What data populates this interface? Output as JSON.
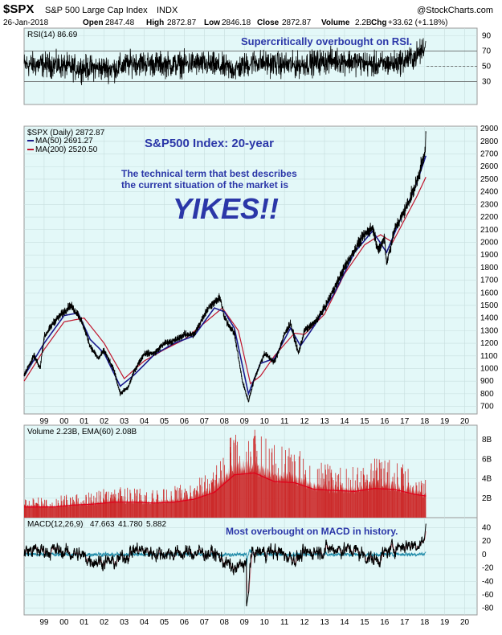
{
  "header": {
    "symbol": "$SPX",
    "name": "S&P 500 Large Cap Index",
    "exchange": "INDX",
    "watermark": "@StockCharts.com",
    "date": "26-Jan-2018",
    "open_label": "Open",
    "open": "2847.48",
    "high_label": "High",
    "high": "2872.87",
    "low_label": "Low",
    "low": "2846.18",
    "close_label": "Close",
    "close": "2872.87",
    "volume_label": "Volume",
    "volume": "2.2B",
    "chg_label": "Chg",
    "chg": "+33.62 (+1.18%)"
  },
  "colors": {
    "panel_bg": "#e3f8f8",
    "price": "#000000",
    "ma50": "#1a1a8c",
    "ma200": "#c0142c",
    "volume_fill": "#cc2a2a",
    "volume_ema": "#e0001a",
    "macd_signal": "#e0001a",
    "macd_hist": "#1e8aa8",
    "annotation": "#2b37a8"
  },
  "annotations": {
    "rsi_note": "Supercritically overbought on RSI.",
    "price_title": "S&P500 Index: 20-year",
    "price_text_1": "The technical term that best describes",
    "price_text_2": "the current situation of the market is",
    "price_yikes": "YIKES!!",
    "macd_note": "Most overbought on MACD in history."
  },
  "chart_data": [
    {
      "type": "line",
      "panel": "rsi",
      "legend": "RSI(14) 86.69",
      "current": 86.69,
      "ylim": [
        0,
        100
      ],
      "yticks": [
        "90",
        "70",
        "50",
        "30"
      ],
      "reference_lines": [
        70,
        30
      ],
      "x": [
        "99",
        "00",
        "01",
        "02",
        "03",
        "04",
        "05",
        "06",
        "07",
        "08",
        "09",
        "10",
        "11",
        "12",
        "13",
        "14",
        "15",
        "16",
        "17",
        "18"
      ],
      "mean_by_year": [
        52,
        48,
        48,
        47,
        55,
        53,
        52,
        54,
        51,
        46,
        56,
        53,
        51,
        55,
        58,
        56,
        52,
        54,
        62,
        86
      ]
    },
    {
      "type": "line",
      "panel": "price",
      "title": "S&P500 Index: 20-year",
      "ylim": [
        640,
        2920
      ],
      "yticks": [
        "2900",
        "2800",
        "2700",
        "2600",
        "2500",
        "2400",
        "2300",
        "2200",
        "2100",
        "2000",
        "1900",
        "1800",
        "1700",
        "1600",
        "1500",
        "1400",
        "1300",
        "1200",
        "1100",
        "1000",
        "900",
        "800",
        "700"
      ],
      "xticks": [
        "99",
        "00",
        "01",
        "02",
        "03",
        "04",
        "05",
        "06",
        "07",
        "08",
        "09",
        "10",
        "11",
        "12",
        "13",
        "14",
        "15",
        "16",
        "17",
        "18",
        "19",
        "20"
      ],
      "series": [
        {
          "name": "$SPX (Daily) 2872.87",
          "x": [
            1998.0,
            1998.5,
            1998.8,
            1999.0,
            1999.5,
            2000.0,
            2000.3,
            2000.7,
            2001.0,
            2001.3,
            2001.7,
            2002.0,
            2002.5,
            2002.8,
            2003.2,
            2003.5,
            2004.0,
            2004.5,
            2005.0,
            2005.5,
            2006.0,
            2006.5,
            2007.0,
            2007.3,
            2007.8,
            2008.0,
            2008.5,
            2008.9,
            2009.2,
            2009.5,
            2010.0,
            2010.5,
            2011.0,
            2011.3,
            2011.7,
            2012.0,
            2012.5,
            2013.0,
            2013.5,
            2014.0,
            2014.5,
            2015.0,
            2015.4,
            2015.7,
            2016.0,
            2016.1,
            2016.5,
            2017.0,
            2017.5,
            2018.0,
            2018.07
          ],
          "values": [
            950,
            1100,
            1000,
            1250,
            1370,
            1450,
            1500,
            1430,
            1320,
            1180,
            1080,
            1140,
            980,
            800,
            850,
            980,
            1120,
            1120,
            1200,
            1220,
            1270,
            1270,
            1430,
            1500,
            1560,
            1400,
            1280,
            900,
            740,
            920,
            1120,
            1050,
            1270,
            1360,
            1120,
            1300,
            1360,
            1480,
            1640,
            1800,
            1940,
            2060,
            2120,
            1930,
            2040,
            1830,
            2100,
            2250,
            2430,
            2690,
            2872
          ]
        },
        {
          "name": "MA(50) 2691.27",
          "x": [
            1998.0,
            1999.0,
            2000.0,
            2000.7,
            2001.3,
            2002.0,
            2002.8,
            2003.5,
            2004.5,
            2005.5,
            2006.5,
            2007.5,
            2008.0,
            2008.5,
            2009.2,
            2009.8,
            2010.5,
            2011.3,
            2011.8,
            2012.5,
            2013.5,
            2014.5,
            2015.4,
            2016.1,
            2016.7,
            2017.5,
            2018.07
          ],
          "values": [
            940,
            1200,
            1420,
            1440,
            1230,
            1120,
            860,
            950,
            1110,
            1200,
            1260,
            1480,
            1450,
            1320,
            800,
            1040,
            1080,
            1320,
            1180,
            1340,
            1600,
            1920,
            2090,
            1920,
            2150,
            2420,
            2691
          ]
        },
        {
          "name": "MA(200) 2520.50",
          "x": [
            1998.0,
            1999.0,
            2000.0,
            2001.0,
            2002.0,
            2003.0,
            2004.0,
            2005.0,
            2006.0,
            2007.0,
            2007.9,
            2008.7,
            2009.3,
            2009.8,
            2010.5,
            2011.5,
            2012.0,
            2013.0,
            2014.0,
            2015.0,
            2015.8,
            2016.4,
            2017.0,
            2017.6,
            2018.07
          ],
          "values": [
            900,
            1150,
            1370,
            1400,
            1200,
            920,
            1060,
            1150,
            1230,
            1360,
            1480,
            1300,
            880,
            940,
            1100,
            1280,
            1270,
            1430,
            1750,
            1980,
            2060,
            2000,
            2180,
            2360,
            2520
          ]
        }
      ]
    },
    {
      "type": "bar",
      "panel": "volume",
      "legend": "Volume 2.23B, EMA(60) 2.08B",
      "ylim": [
        0,
        9.5
      ],
      "yticks": [
        "8B",
        "6B",
        "4B",
        "2B"
      ],
      "x": [
        "99",
        "00",
        "01",
        "02",
        "03",
        "04",
        "05",
        "06",
        "07",
        "08",
        "09",
        "10",
        "11",
        "12",
        "13",
        "14",
        "15",
        "16",
        "17",
        "18"
      ],
      "values": [
        1.2,
        1.4,
        1.5,
        1.8,
        1.7,
        1.6,
        1.8,
        2.1,
        3.0,
        5.2,
        5.4,
        4.2,
        4.1,
        3.2,
        3.0,
        2.9,
        3.4,
        3.3,
        2.7,
        2.23
      ],
      "ema_values": [
        1.1,
        1.3,
        1.4,
        1.6,
        1.6,
        1.5,
        1.6,
        1.9,
        2.6,
        4.4,
        4.6,
        3.7,
        3.6,
        2.9,
        2.8,
        2.7,
        3.0,
        2.9,
        2.4,
        2.08
      ]
    },
    {
      "type": "line",
      "panel": "macd",
      "legend_label": "MACD(12,26,9)",
      "macd": "47.663",
      "signal": "41.780",
      "histogram": "5.882",
      "ylim": [
        -90,
        55
      ],
      "yticks": [
        "40",
        "20",
        "0",
        "-20",
        "-40",
        "-60",
        "-80"
      ],
      "x": [
        "99",
        "00",
        "01",
        "02",
        "03",
        "04",
        "05",
        "06",
        "07",
        "08",
        "09",
        "10",
        "11",
        "12",
        "13",
        "14",
        "15",
        "16",
        "17",
        "18"
      ],
      "mean_by_year": [
        10,
        2,
        -15,
        -20,
        12,
        4,
        3,
        5,
        2,
        -40,
        5,
        8,
        -10,
        10,
        15,
        10,
        -15,
        20,
        25,
        47.663
      ]
    }
  ]
}
